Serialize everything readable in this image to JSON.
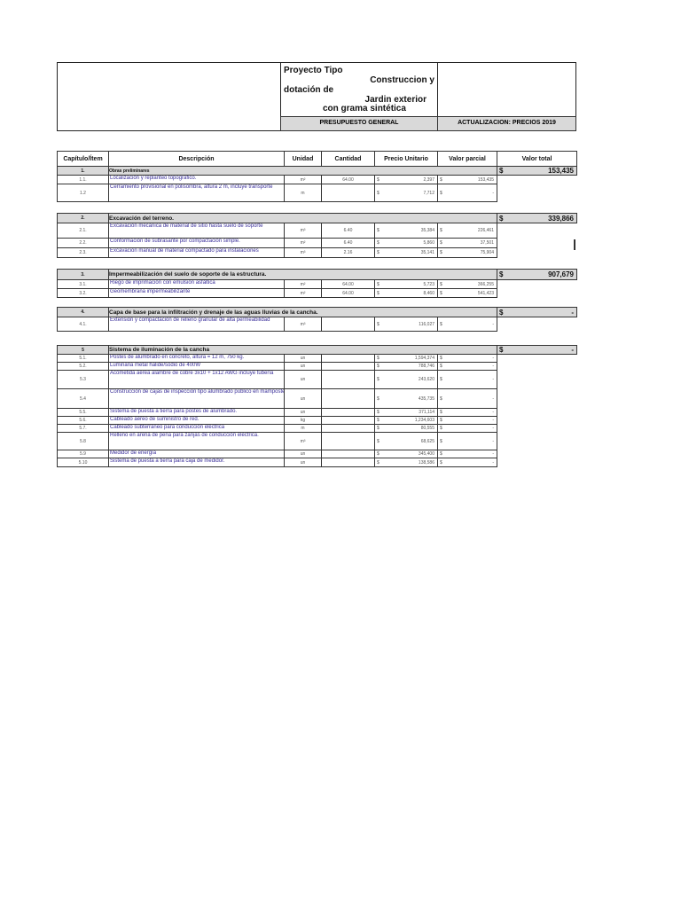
{
  "header": {
    "title_lines": [
      "Proyecto Tipo",
      "Construccion y",
      "dotación de",
      "Jardin exterior",
      "con grama sintética"
    ],
    "band_left": "PRESUPUESTO GENERAL",
    "band_right": "ACTUALIZACION: PRECIOS 2019"
  },
  "columns": [
    "Capítulo/Ítem",
    "Descripción",
    "Unidad",
    "Cantidad",
    "Precio Unitario",
    "Valor parcial",
    "Valor total"
  ],
  "currency": "$",
  "sections": [
    {
      "code": "1.",
      "title": "Obras preliminares",
      "total": "153,435",
      "items": [
        {
          "code": "1.1.",
          "desc": "Localización y replanteo topográfico.",
          "unit": "m²",
          "qty": "64.00",
          "price": "2,397",
          "partial": "153,435"
        },
        {
          "code": "1.2",
          "desc": "Cerramiento provisional en polisombra, altura 2 m, incluye transporte",
          "unit": "m",
          "qty": "",
          "price": "7,712",
          "partial": "-"
        }
      ]
    },
    {
      "code": "2.",
      "title": "Excavación del terreno.",
      "total": "339,866",
      "items": [
        {
          "code": "2.1.",
          "desc": "Excavación mecánica de material de sitio hasta suelo de soporte",
          "unit": "m³",
          "qty": "6.40",
          "price": "35,384",
          "partial": "226,461"
        },
        {
          "code": "2.2.",
          "desc": "Conformación de subrasante por compactación simple.",
          "unit": "m²",
          "qty": "6.40",
          "price": "5,860",
          "partial": "37,501"
        },
        {
          "code": "2.3.",
          "desc": "Excavación manual de material compactado para instalaciones",
          "unit": "m³",
          "qty": "2.16",
          "price": "35,141",
          "partial": "75,904"
        }
      ]
    },
    {
      "code": "3.",
      "title": "Impermeabilización del suelo de soporte de la estructura.",
      "total": "907,679",
      "items": [
        {
          "code": "3.1.",
          "desc": "Riego de imprimación con emulsión asfáltica",
          "unit": "m²",
          "qty": "64.00",
          "price": "5,723",
          "partial": "366,255"
        },
        {
          "code": "3.2.",
          "desc": "Geomembrana impermeabilizante",
          "unit": "m²",
          "qty": "64.00",
          "price": "8,460",
          "partial": "541,423"
        }
      ]
    },
    {
      "code": "4.",
      "title": "Capa de base para la infiltración y drenaje de las aguas lluvias de la cancha.",
      "total": "-",
      "items": [
        {
          "code": "4.1.",
          "desc": "Extensión y compactación de relleno granular de alta permeabilidad",
          "unit": "m³",
          "qty": "",
          "price": "116,027",
          "partial": "-"
        }
      ]
    },
    {
      "code": "5",
      "title": "Sistema de iluminación de la cancha",
      "total": "-",
      "items": [
        {
          "code": "5.1.",
          "desc": "Postes de alumbrado en concreto, altura = 12 m, 750 kg.",
          "unit": "un",
          "qty": "",
          "price": "1,594,374",
          "partial": "-"
        },
        {
          "code": "5.2.",
          "desc": "Luminaria metal halide/sodio de 400W",
          "unit": "un",
          "qty": "",
          "price": "788,746",
          "partial": "-"
        },
        {
          "code": "5.3",
          "desc": "Acometida aérea alambre de cobre 3x10 + 1x12 AWG incluye tubería",
          "unit": "un",
          "qty": "",
          "price": "243,620",
          "partial": "-"
        },
        {
          "code": "5.4",
          "desc": "Construcción de cajas de inspección tipo alumbrado público en mampostería",
          "unit": "un",
          "qty": "",
          "price": "435,735",
          "partial": "-"
        },
        {
          "code": "5.5.",
          "desc": "Sistema de puesta a tierra para postes de alumbrado.",
          "unit": "un",
          "qty": "",
          "price": "371,114",
          "partial": "-"
        },
        {
          "code": "5.6.",
          "desc": "Cableado aéreo de suministro de red.",
          "unit": "kg",
          "qty": "",
          "price": "1,234,603",
          "partial": "-"
        },
        {
          "code": "5.7.",
          "desc": "Cableado subterráneo para conducción eléctrica",
          "unit": "m",
          "qty": "",
          "price": "80,555",
          "partial": "-"
        },
        {
          "code": "5.8",
          "desc": "Relleno en arena de peña para zanjas de conducción eléctrica.",
          "unit": "m³",
          "qty": "",
          "price": "68,625",
          "partial": "-"
        },
        {
          "code": "5.9",
          "desc": "Medidor de energía",
          "unit": "un",
          "qty": "",
          "price": "345,400",
          "partial": "-"
        },
        {
          "code": "5.10",
          "desc": "Sistema de puesta a tierra para caja de medidor.",
          "unit": "un",
          "qty": "",
          "price": "138,586",
          "partial": "-"
        }
      ]
    }
  ]
}
